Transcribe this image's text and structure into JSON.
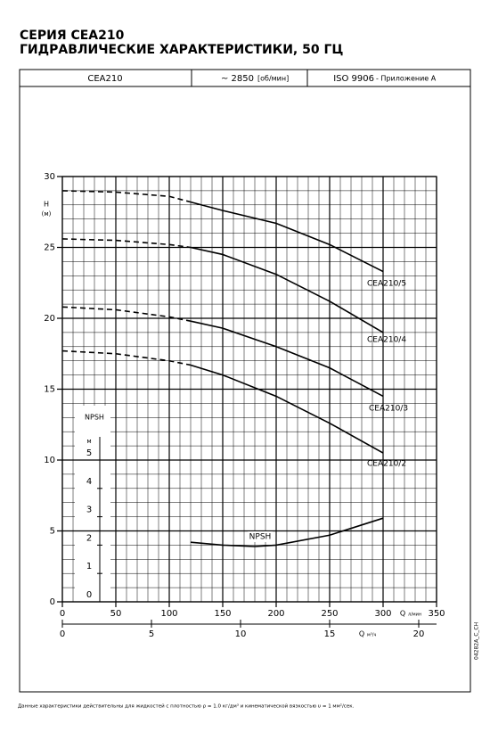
{
  "header": {
    "title": "СЕРИЯ CEA210",
    "subtitle": "ГИДРАВЛИЧЕСКИЕ ХАРАКТЕРИСТИКИ, 50 ГЦ",
    "cells": [
      "CEA210",
      "~ 2850",
      "[об/мин]",
      "ISO 9906",
      "- Приложение A"
    ]
  },
  "chart_data": {
    "type": "line",
    "y_label": "H",
    "y_unit": "(м)",
    "x_label": "Q",
    "x_unit": "л/мин",
    "x2_label": "Q",
    "x2_unit": "м³/ч",
    "xlim": [
      0,
      350
    ],
    "xticks": [
      0,
      50,
      100,
      150,
      200,
      250,
      300,
      350
    ],
    "x2lim": [
      0,
      21
    ],
    "x2ticks": [
      0,
      5,
      10,
      15,
      20
    ],
    "ylim": [
      0,
      30
    ],
    "yticks": [
      0,
      5,
      10,
      15,
      20,
      25,
      30
    ],
    "y2_label": "NPSH",
    "y2_unit": "м",
    "y2lim": [
      0,
      15
    ],
    "y2ticks": [
      0,
      1,
      2,
      3,
      4,
      5
    ],
    "xminor": [
      0,
      10,
      20,
      30,
      40,
      50,
      60,
      70,
      80,
      90,
      100,
      110,
      120,
      130,
      140,
      150,
      160,
      170,
      180,
      190,
      200,
      210,
      220,
      230,
      240,
      250,
      260,
      270,
      280,
      290,
      300,
      310,
      320,
      330,
      340,
      350
    ],
    "yminor": [
      0,
      1,
      2,
      3,
      4,
      5,
      6,
      7,
      8,
      9,
      10,
      11,
      12,
      13,
      14,
      15,
      16,
      17,
      18,
      19,
      20,
      21,
      22,
      23,
      24,
      25,
      26,
      27,
      28,
      29,
      30
    ],
    "grid": true,
    "color": "#000000",
    "series": [
      {
        "name": "CEA210/5",
        "segments": [
          {
            "style": "dashed",
            "x": [
              0,
              50,
              100,
              120
            ],
            "values": [
              29.0,
              28.9,
              28.6,
              28.2
            ]
          },
          {
            "style": "solid",
            "x": [
              120,
              150,
              200,
              250,
              300
            ],
            "values": [
              28.2,
              27.6,
              26.7,
              25.2,
              23.3
            ]
          }
        ]
      },
      {
        "name": "CEA210/4",
        "segments": [
          {
            "style": "dashed",
            "x": [
              0,
              50,
              100,
              120
            ],
            "values": [
              25.6,
              25.5,
              25.2,
              25.0
            ]
          },
          {
            "style": "solid",
            "x": [
              120,
              150,
              200,
              250,
              300
            ],
            "values": [
              25.0,
              24.5,
              23.1,
              21.2,
              19.0
            ]
          }
        ]
      },
      {
        "name": "CEA210/3",
        "segments": [
          {
            "style": "dashed",
            "x": [
              0,
              50,
              100,
              120
            ],
            "values": [
              20.8,
              20.6,
              20.1,
              19.8
            ]
          },
          {
            "style": "solid",
            "x": [
              120,
              150,
              200,
              250,
              300
            ],
            "values": [
              19.8,
              19.3,
              18.0,
              16.5,
              14.5
            ]
          }
        ]
      },
      {
        "name": "CEA210/2",
        "segments": [
          {
            "style": "dashed",
            "x": [
              0,
              50,
              100,
              120
            ],
            "values": [
              17.7,
              17.5,
              17.0,
              16.7
            ]
          },
          {
            "style": "solid",
            "x": [
              120,
              150,
              200,
              250,
              300
            ],
            "values": [
              16.7,
              16.0,
              14.5,
              12.6,
              10.5
            ]
          }
        ]
      },
      {
        "name": "NPSH",
        "axis": "y2",
        "segments": [
          {
            "style": "solid",
            "x": [
              120,
              150,
              180,
              200,
              250,
              300
            ],
            "values": [
              2.1,
              2.0,
              1.95,
              2.0,
              2.35,
              2.95
            ]
          }
        ]
      }
    ]
  },
  "footer": {
    "note": "Данные характеристики действительны для жидкостей с  плотностью ρ = 1.0 кг/дм³ и кинематической вязкостью υ = 1 мм²/сек.",
    "code": "04282A_C_CH"
  }
}
